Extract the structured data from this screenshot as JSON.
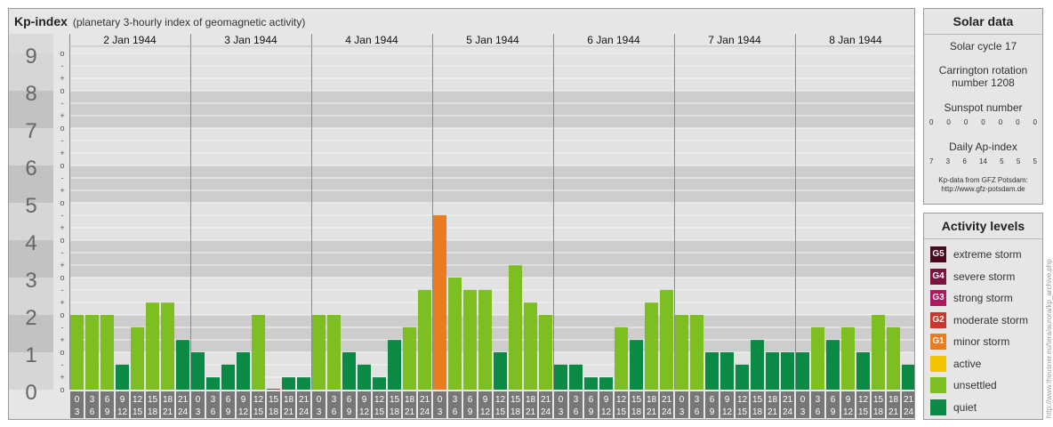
{
  "header": {
    "title": "Kp-index",
    "subtitle": "(planetary 3-hourly index of geomagnetic activity)"
  },
  "chart_data": {
    "type": "bar",
    "title": "Kp-index",
    "subtitle": "(planetary 3-hourly index of geomagnetic activity)",
    "days": [
      "2 Jan 1944",
      "3 Jan 1944",
      "4 Jan 1944",
      "5 Jan 1944",
      "6 Jan 1944",
      "7 Jan 1944",
      "8 Jan 1944"
    ],
    "intervals": [
      [
        "0",
        "3"
      ],
      [
        "3",
        "6"
      ],
      [
        "6",
        "9"
      ],
      [
        "9",
        "12"
      ],
      [
        "12",
        "15"
      ],
      [
        "15",
        "18"
      ],
      [
        "18",
        "21"
      ],
      [
        "21",
        "24"
      ]
    ],
    "y_major_labels": [
      "0",
      "1",
      "2",
      "3",
      "4",
      "5",
      "6",
      "7",
      "8",
      "9"
    ],
    "y_minor_labels": [
      "o",
      "+",
      "-",
      "o",
      "+",
      "-",
      "o",
      "+",
      "-",
      "o",
      "+",
      "-",
      "o",
      "+",
      "-",
      "o",
      "+",
      "-",
      "o",
      "+",
      "-",
      "o",
      "+",
      "-",
      "o",
      "+",
      "-",
      "o"
    ],
    "ylim": [
      0,
      9
    ],
    "values": [
      2.0,
      2.0,
      2.0,
      0.67,
      1.67,
      2.33,
      2.33,
      1.33,
      1.0,
      0.33,
      0.67,
      1.0,
      2.0,
      0.0,
      0.33,
      0.33,
      2.0,
      2.0,
      1.0,
      0.67,
      0.33,
      1.33,
      1.67,
      2.67,
      4.67,
      3.0,
      2.67,
      2.67,
      1.0,
      3.33,
      2.33,
      2.0,
      0.67,
      0.67,
      0.33,
      0.33,
      1.67,
      1.33,
      2.33,
      2.67,
      2.0,
      2.0,
      1.0,
      1.0,
      0.67,
      1.33,
      1.0,
      1.0,
      1.0,
      1.67,
      1.33,
      1.67,
      1.0,
      2.0,
      1.67,
      0.67
    ],
    "colors": {
      "quiet": "#0a8a45",
      "unsettled": "#7dbf22",
      "active": "#f5c400",
      "G1": "#e87c1e",
      "G2": "#c8372d",
      "G3": "#b0185e",
      "G4": "#7a1340",
      "G5": "#4a0a22"
    },
    "grid": true
  },
  "solar": {
    "title": "Solar data",
    "cycle": "Solar cycle 17",
    "carrington_line1": "Carrington rotation",
    "carrington_line2": "number 1208",
    "sunspot_label": "Sunspot number",
    "sunspot_values": [
      "0",
      "0",
      "0",
      "0",
      "0",
      "0",
      "0"
    ],
    "ap_label": "Daily Ap-index",
    "ap_values": [
      "7",
      "3",
      "6",
      "14",
      "5",
      "5",
      "5"
    ],
    "source_line1": "Kp-data from GFZ Potsdam:",
    "source_line2": "http://www.gfz-potsdam.de"
  },
  "activity": {
    "title": "Activity levels",
    "levels": [
      {
        "code": "G5",
        "label": "extreme storm",
        "color": "#4a0a22"
      },
      {
        "code": "G4",
        "label": "severe storm",
        "color": "#7a1340"
      },
      {
        "code": "G3",
        "label": "strong storm",
        "color": "#b0185e"
      },
      {
        "code": "G2",
        "label": "moderate storm",
        "color": "#c8372d"
      },
      {
        "code": "G1",
        "label": "minor storm",
        "color": "#e87c1e"
      },
      {
        "code": "",
        "label": "active",
        "color": "#f5c400"
      },
      {
        "code": "",
        "label": "unsettled",
        "color": "#7dbf22"
      },
      {
        "code": "",
        "label": "quiet",
        "color": "#0a8a45"
      }
    ]
  },
  "watermark": "http://www.theusner.eu/tera/aurora/kp_archive.php"
}
